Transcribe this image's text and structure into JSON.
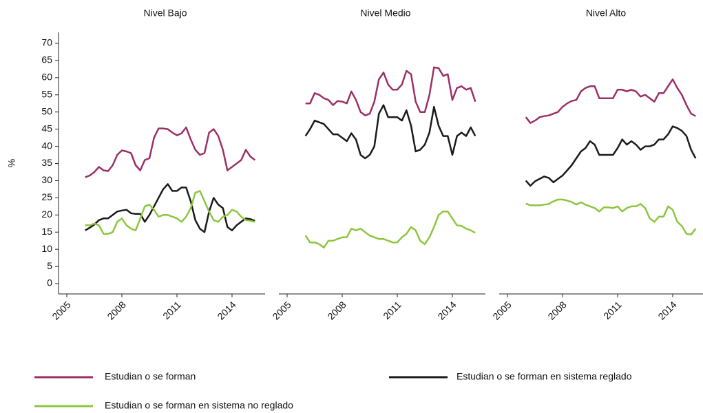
{
  "chart_data": [
    {
      "type": "line",
      "title": "Nivel Bajo",
      "ylabel": "%",
      "x": [
        2006,
        2006.25,
        2006.5,
        2006.75,
        2007,
        2007.25,
        2007.5,
        2007.75,
        2008,
        2008.25,
        2008.5,
        2008.75,
        2009,
        2009.25,
        2009.5,
        2009.75,
        2010,
        2010.25,
        2010.5,
        2010.75,
        2011,
        2011.25,
        2011.5,
        2011.75,
        2012,
        2012.25,
        2012.5,
        2012.75,
        2013,
        2013.25,
        2013.5,
        2013.75,
        2014,
        2014.25,
        2014.5,
        2014.75,
        2015,
        2015.25
      ],
      "xlim": [
        2004.55,
        2015.8
      ],
      "xticks": [
        2005,
        2008,
        2011,
        2014
      ],
      "ylim": [
        -3,
        73.2
      ],
      "yticks": [
        0,
        5,
        10,
        15,
        20,
        25,
        30,
        35,
        40,
        45,
        50,
        55,
        60,
        65,
        70
      ],
      "series": [
        {
          "name": "Estudian o se forman",
          "color": "#9b2f66",
          "values": [
            31,
            31.5,
            32.5,
            34,
            33,
            32.8,
            34.5,
            37.5,
            38.8,
            38.5,
            38,
            34.5,
            33,
            36,
            36.5,
            42.5,
            45.2,
            45.2,
            45,
            44,
            43.2,
            43.8,
            45.5,
            42,
            39,
            37.5,
            38,
            44,
            45,
            43,
            39,
            33,
            34,
            35,
            36,
            39,
            37,
            36
          ]
        },
        {
          "name": "Estudian o se forman en sistema reglado",
          "color": "#1a1a1a",
          "values": [
            15.5,
            16.3,
            17.2,
            18.5,
            19,
            19,
            20,
            21,
            21.3,
            21.5,
            20.5,
            20.3,
            20.3,
            18,
            20,
            22.5,
            25,
            27.5,
            29,
            27,
            27,
            28,
            28,
            24,
            18.5,
            16,
            15,
            21,
            25,
            23,
            22,
            16.5,
            15.5,
            17,
            18,
            19,
            18.8,
            18.3
          ]
        },
        {
          "name": "Estudian o se forman en sistema no reglado",
          "color": "#8cc63f",
          "values": [
            17,
            17,
            17.5,
            17,
            14.5,
            14.5,
            15,
            18,
            19,
            17,
            16,
            15.5,
            19,
            22.5,
            23,
            21.5,
            19.5,
            20,
            20,
            19.5,
            19,
            18,
            19.5,
            22,
            26.5,
            27,
            24,
            21,
            18.5,
            18,
            19.5,
            20,
            21.5,
            21,
            19.5,
            18.5,
            18.3,
            18
          ]
        }
      ]
    },
    {
      "type": "line",
      "title": "Nivel Medio",
      "x": [
        2006,
        2006.25,
        2006.5,
        2006.75,
        2007,
        2007.25,
        2007.5,
        2007.75,
        2008,
        2008.25,
        2008.5,
        2008.75,
        2009,
        2009.25,
        2009.5,
        2009.75,
        2010,
        2010.25,
        2010.5,
        2010.75,
        2011,
        2011.25,
        2011.5,
        2011.75,
        2012,
        2012.25,
        2012.5,
        2012.75,
        2013,
        2013.25,
        2013.5,
        2013.75,
        2014,
        2014.25,
        2014.5,
        2014.75,
        2015,
        2015.25
      ],
      "xlim": [
        2004.55,
        2015.8
      ],
      "xticks": [
        2005,
        2008,
        2011,
        2014
      ],
      "ylim": [
        -3,
        73.2
      ],
      "series": [
        {
          "values": [
            52.5,
            52.5,
            55.5,
            55,
            54,
            53.5,
            52,
            53.2,
            53,
            52.5,
            56,
            53.5,
            50,
            49,
            49.5,
            53,
            59.5,
            61.5,
            58,
            56.5,
            56.5,
            58,
            62,
            61,
            53,
            50,
            50,
            55,
            63,
            62.8,
            60.5,
            61,
            53.5,
            57,
            57.5,
            56.5,
            57,
            53
          ]
        },
        {
          "values": [
            43,
            45,
            47.5,
            47,
            46.5,
            45,
            43.5,
            43.5,
            42.5,
            41.5,
            43.8,
            42,
            37.5,
            36.5,
            37.5,
            40,
            49.5,
            52,
            48.5,
            48.5,
            48.5,
            47.5,
            50.5,
            46,
            38.5,
            39,
            40.5,
            44,
            51.5,
            46,
            43,
            43,
            37.5,
            43,
            44,
            43,
            45.5,
            43
          ]
        },
        {
          "values": [
            14,
            12,
            12,
            11.5,
            10.5,
            12.5,
            12.5,
            13,
            13.5,
            13.5,
            16,
            15.5,
            16,
            15,
            14,
            13.5,
            13,
            13,
            12.5,
            12,
            12,
            13.5,
            14.5,
            16.5,
            15.5,
            12.5,
            11.5,
            13.5,
            16.5,
            20,
            21,
            21,
            19,
            17,
            16.8,
            16,
            15.5,
            14.8
          ]
        }
      ]
    },
    {
      "type": "line",
      "title": "Nivel Alto",
      "x": [
        2006,
        2006.25,
        2006.5,
        2006.75,
        2007,
        2007.25,
        2007.5,
        2007.75,
        2008,
        2008.25,
        2008.5,
        2008.75,
        2009,
        2009.25,
        2009.5,
        2009.75,
        2010,
        2010.25,
        2010.5,
        2010.75,
        2011,
        2011.25,
        2011.5,
        2011.75,
        2012,
        2012.25,
        2012.5,
        2012.75,
        2013,
        2013.25,
        2013.5,
        2013.75,
        2014,
        2014.25,
        2014.5,
        2014.75,
        2015,
        2015.25
      ],
      "xlim": [
        2004.55,
        2015.8
      ],
      "xticks": [
        2005,
        2008,
        2011,
        2014
      ],
      "ylim": [
        -3,
        73.2
      ],
      "series": [
        {
          "values": [
            48.5,
            46.8,
            47.5,
            48.5,
            48.8,
            49,
            49.5,
            50,
            51.5,
            52.5,
            53.2,
            53.5,
            56,
            57,
            57.5,
            57.5,
            54,
            54,
            54,
            54,
            56.5,
            56.5,
            56,
            56.5,
            56,
            54.5,
            55,
            54,
            53,
            55.5,
            55.5,
            57.5,
            59.5,
            57,
            55,
            52,
            49.5,
            48.8
          ]
        },
        {
          "values": [
            30,
            28.5,
            29.8,
            30.5,
            31.2,
            30.8,
            29.5,
            30.5,
            31.5,
            33,
            34.5,
            36.5,
            38.5,
            39.5,
            41.5,
            40.5,
            37.5,
            37.5,
            37.5,
            37.5,
            39.5,
            42,
            40.5,
            41.5,
            40.5,
            39,
            40,
            40,
            40.5,
            42,
            42,
            43.5,
            45.8,
            45.3,
            44.5,
            43,
            39,
            36.5
          ]
        },
        {
          "values": [
            23.3,
            22.8,
            22.8,
            22.8,
            23,
            23.2,
            24,
            24.5,
            24.5,
            24.2,
            23.8,
            23,
            23.7,
            23,
            22.5,
            22,
            21,
            22.2,
            22.2,
            22,
            22.5,
            21,
            22,
            22.5,
            22.5,
            23.2,
            22,
            19,
            18,
            19.5,
            19.5,
            22.5,
            21.5,
            18,
            16.8,
            14.5,
            14.3,
            16
          ]
        }
      ]
    }
  ]
}
